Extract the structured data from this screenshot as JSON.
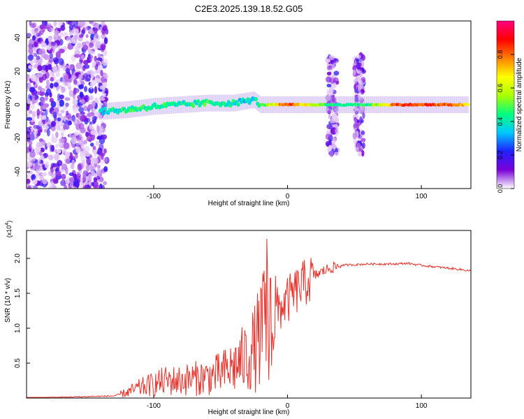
{
  "title": "C2E3.2025.139.18.52.G05",
  "chart_data": [
    {
      "type": "heatmap",
      "xlabel": "Height of straight line (km)",
      "ylabel": "Frequency (Hz)",
      "xlim": [
        -195,
        137
      ],
      "ylim": [
        -50,
        50
      ],
      "xticks": [
        -100,
        0,
        100
      ],
      "yticks": [
        -40,
        -20,
        0,
        20,
        40
      ],
      "colorbar": {
        "label": "Normalized spectral amplitude",
        "range": [
          0,
          1
        ],
        "ticks": [
          "0.0",
          "0.2",
          "0.4",
          "0.6",
          "0.8"
        ],
        "colormap": [
          "#ffffff",
          "#7b00d8",
          "#2020ff",
          "#00c8ff",
          "#00ff80",
          "#aaff00",
          "#ffff00",
          "#ff8000",
          "#ff0000",
          "#ff0080"
        ]
      },
      "ridge": [
        {
          "x": -140,
          "freq": -4,
          "amp": 0.35
        },
        {
          "x": -120,
          "freq": -3,
          "amp": 0.45
        },
        {
          "x": -100,
          "freq": -1,
          "amp": 0.45
        },
        {
          "x": -80,
          "freq": 0,
          "amp": 0.4
        },
        {
          "x": -60,
          "freq": 1,
          "amp": 0.45
        },
        {
          "x": -40,
          "freq": 1,
          "amp": 0.4
        },
        {
          "x": -25,
          "freq": 3,
          "amp": 0.35
        },
        {
          "x": -20,
          "freq": 0,
          "amp": 0.45
        },
        {
          "x": 0,
          "freq": 0,
          "amp": 0.85
        },
        {
          "x": 30,
          "freq": 0,
          "amp": 0.45
        },
        {
          "x": 60,
          "freq": 0,
          "amp": 0.45
        },
        {
          "x": 80,
          "freq": 0,
          "amp": 0.8
        },
        {
          "x": 100,
          "freq": 0,
          "amp": 0.85
        },
        {
          "x": 120,
          "freq": 0,
          "amp": 0.8
        },
        {
          "x": 135,
          "freq": 0,
          "amp": 0.7
        }
      ],
      "noise_regions": [
        {
          "x_range": [
            -195,
            -135
          ],
          "freq_range": [
            -50,
            50
          ]
        },
        {
          "x_range": [
            30,
            37
          ],
          "freq_range": [
            -30,
            30
          ]
        },
        {
          "x_range": [
            50,
            57
          ],
          "freq_range": [
            -30,
            30
          ]
        }
      ]
    },
    {
      "type": "line",
      "xlabel": "Height of straight line (km)",
      "ylabel": "SNR (10 * v/v)",
      "y_multiplier": "(x10",
      "y_multiplier_exp": "4",
      "xlim": [
        -195,
        137
      ],
      "ylim": [
        0,
        2.4
      ],
      "xticks": [
        -100,
        0,
        100
      ],
      "yticks": [
        0.5,
        1.0,
        1.5,
        2.0
      ],
      "series": [
        {
          "color": "#e8322b",
          "x": [
            -195,
            -170,
            -150,
            -130,
            -120,
            -110,
            -100,
            -90,
            -80,
            -70,
            -60,
            -50,
            -40,
            -30,
            -25,
            -20,
            -15,
            -10,
            -5,
            0,
            10,
            20,
            30,
            40,
            50,
            60,
            70,
            80,
            90,
            100,
            110,
            120,
            130,
            137
          ],
          "y": [
            0.0,
            0.01,
            0.02,
            0.03,
            0.08,
            0.15,
            0.2,
            0.25,
            0.25,
            0.28,
            0.3,
            0.35,
            0.45,
            0.6,
            0.7,
            0.9,
            1.1,
            1.2,
            1.3,
            1.4,
            1.6,
            1.75,
            1.85,
            1.9,
            1.91,
            1.92,
            1.92,
            1.92,
            1.93,
            1.9,
            1.88,
            1.86,
            1.84,
            1.82
          ]
        }
      ]
    }
  ]
}
